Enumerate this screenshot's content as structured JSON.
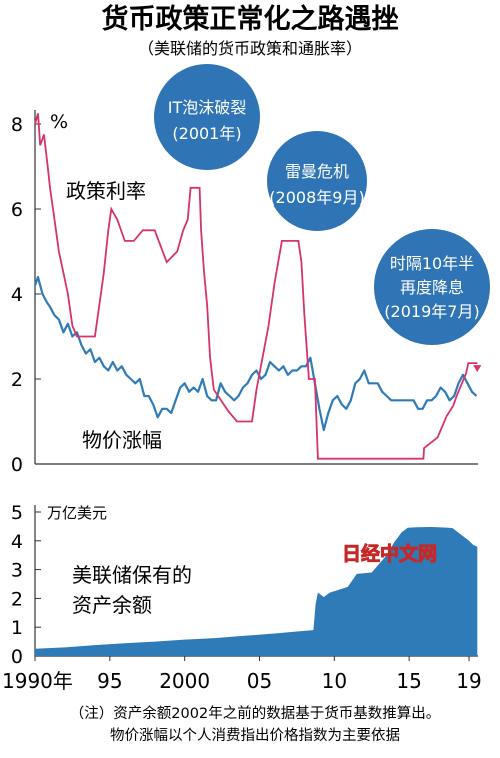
{
  "title": "货币政策正常化之路遇挫",
  "subtitle": "（美联储的货币政策和通胀率）",
  "colors": {
    "policy_rate": "#d6336c",
    "inflation": "#2f7bb8",
    "balance": "#2f7bb8",
    "bubble": "#2f74b5"
  },
  "annotations": [
    {
      "id": "it",
      "lines": [
        "IT泡沫破裂",
        "(2001年)"
      ]
    },
    {
      "id": "lehman",
      "lines": [
        "雷曼危机",
        "(2008年9月)"
      ]
    },
    {
      "id": "cut2019",
      "lines": [
        "时隔10年半",
        "再度降息",
        "(2019年7月)"
      ]
    }
  ],
  "note": {
    "line1": "（注）资产余额2002年之前的数据基于货币基数推算出。",
    "line2": "物价涨幅以个人消费指出价格指数为主要依据"
  },
  "watermark": "日经中文网",
  "chart_data": [
    {
      "type": "line",
      "yunit": "%",
      "ylim": [
        0,
        8
      ],
      "yticks": [
        0,
        2,
        4,
        6,
        8
      ],
      "xlim": [
        1990,
        2019.6
      ],
      "series": [
        {
          "name": "政策利率",
          "x": [
            1990.0,
            1990.2,
            1990.35,
            1990.6,
            1990.85,
            1991.0,
            1991.3,
            1991.6,
            1991.9,
            1992.2,
            1992.5,
            1992.8,
            1993.5,
            1994.0,
            1994.1,
            1994.3,
            1994.6,
            1994.9,
            1995.1,
            1995.5,
            1996.0,
            1996.6,
            1997.2,
            1998.0,
            1998.8,
            1999.5,
            1999.9,
            2000.2,
            2000.4,
            2001.0,
            2001.1,
            2001.3,
            2001.5,
            2001.7,
            2001.95,
            2002.9,
            2003.5,
            2004.5,
            2004.8,
            2005.2,
            2005.6,
            2006.0,
            2006.5,
            2007.6,
            2007.8,
            2008.0,
            2008.1,
            2008.3,
            2008.7,
            2008.9,
            2015.95,
            2016.0,
            2016.9,
            2017.2,
            2017.5,
            2017.95,
            2018.2,
            2018.5,
            2018.8,
            2018.95,
            2019.55
          ],
          "values": [
            8.0,
            8.25,
            7.5,
            7.75,
            7.0,
            6.5,
            5.75,
            5.0,
            4.5,
            4.0,
            3.25,
            3.0,
            3.0,
            3.0,
            3.25,
            3.75,
            4.5,
            5.5,
            6.0,
            5.75,
            5.25,
            5.25,
            5.5,
            5.5,
            4.75,
            5.0,
            5.5,
            5.75,
            6.5,
            6.5,
            5.5,
            4.5,
            3.75,
            2.5,
            1.75,
            1.25,
            1.0,
            1.0,
            1.75,
            2.5,
            3.25,
            4.25,
            5.25,
            5.25,
            4.75,
            3.5,
            3.0,
            2.0,
            2.0,
            0.125,
            0.125,
            0.375,
            0.625,
            0.875,
            1.125,
            1.375,
            1.625,
            1.875,
            2.125,
            2.375,
            2.375
          ]
        },
        {
          "name": "物价涨幅",
          "x": [
            1990.0,
            1990.2,
            1990.5,
            1990.8,
            1991.0,
            1991.3,
            1991.6,
            1991.9,
            1992.2,
            1992.5,
            1992.8,
            1993.1,
            1993.4,
            1993.7,
            1994.0,
            1994.3,
            1994.6,
            1994.9,
            1995.2,
            1995.5,
            1995.8,
            1996.1,
            1996.4,
            1996.7,
            1997.0,
            1997.3,
            1997.6,
            1997.9,
            1998.2,
            1998.5,
            1998.8,
            1999.1,
            1999.4,
            1999.7,
            2000.0,
            2000.3,
            2000.6,
            2000.9,
            2001.2,
            2001.5,
            2001.8,
            2002.1,
            2002.4,
            2002.7,
            2003.0,
            2003.3,
            2003.6,
            2003.9,
            2004.2,
            2004.5,
            2004.8,
            2005.1,
            2005.4,
            2005.7,
            2006.0,
            2006.3,
            2006.6,
            2006.9,
            2007.2,
            2007.5,
            2007.8,
            2008.1,
            2008.4,
            2008.7,
            2009.0,
            2009.3,
            2009.6,
            2009.9,
            2010.2,
            2010.5,
            2010.8,
            2011.1,
            2011.4,
            2011.7,
            2012.0,
            2012.3,
            2012.6,
            2012.9,
            2013.2,
            2013.5,
            2013.8,
            2014.1,
            2014.4,
            2014.7,
            2015.0,
            2015.3,
            2015.6,
            2015.9,
            2016.2,
            2016.5,
            2016.8,
            2017.1,
            2017.4,
            2017.7,
            2018.0,
            2018.3,
            2018.6,
            2018.9,
            2019.2,
            2019.5
          ],
          "values": [
            4.2,
            4.4,
            4.0,
            3.8,
            3.7,
            3.5,
            3.4,
            3.1,
            3.3,
            3.0,
            3.1,
            2.8,
            2.6,
            2.7,
            2.4,
            2.5,
            2.3,
            2.2,
            2.4,
            2.2,
            2.3,
            2.1,
            2.0,
            1.9,
            2.0,
            1.6,
            1.6,
            1.4,
            1.1,
            1.3,
            1.3,
            1.2,
            1.5,
            1.8,
            1.9,
            1.7,
            1.8,
            1.7,
            2.0,
            1.6,
            1.5,
            1.5,
            1.9,
            1.7,
            1.6,
            1.5,
            1.6,
            1.8,
            1.9,
            2.1,
            2.2,
            2.0,
            2.1,
            2.4,
            2.3,
            2.2,
            2.3,
            2.1,
            2.2,
            2.2,
            2.3,
            2.3,
            2.5,
            1.9,
            1.3,
            0.8,
            1.2,
            1.5,
            1.6,
            1.4,
            1.3,
            1.5,
            1.9,
            2.0,
            2.2,
            1.9,
            1.9,
            1.9,
            1.7,
            1.6,
            1.5,
            1.5,
            1.5,
            1.5,
            1.5,
            1.5,
            1.3,
            1.3,
            1.5,
            1.5,
            1.6,
            1.8,
            1.7,
            1.5,
            1.6,
            1.9,
            2.1,
            1.9,
            1.7,
            1.6
          ]
        }
      ]
    },
    {
      "type": "area",
      "name": "美联储保有的资产余额",
      "yunit": "万亿美元",
      "ylim": [
        0,
        5
      ],
      "yticks": [
        0,
        1,
        2,
        3,
        4,
        5
      ],
      "xlim": [
        1990,
        2019.6
      ],
      "xticks": [
        1990,
        1995,
        2000,
        2005,
        2010,
        2015,
        2019
      ],
      "xticklabels": [
        "1990年",
        "95",
        "2000",
        "05",
        "10",
        "15",
        "19"
      ],
      "x": [
        1990.0,
        1992.0,
        1994.0,
        1996.0,
        1998.0,
        2000.0,
        2002.0,
        2004.0,
        2006.0,
        2007.5,
        2008.6,
        2008.75,
        2008.9,
        2009.3,
        2009.7,
        2010.3,
        2010.9,
        2011.5,
        2012.5,
        2013.0,
        2013.5,
        2014.0,
        2014.5,
        2014.9,
        2015.5,
        2016.5,
        2017.5,
        2017.9,
        2018.5,
        2019.0,
        2019.3,
        2019.55
      ],
      "values": [
        0.25,
        0.3,
        0.38,
        0.44,
        0.5,
        0.57,
        0.62,
        0.7,
        0.78,
        0.85,
        0.9,
        1.8,
        2.2,
        2.05,
        2.2,
        2.3,
        2.4,
        2.85,
        2.9,
        3.2,
        3.5,
        3.95,
        4.3,
        4.45,
        4.47,
        4.48,
        4.46,
        4.44,
        4.2,
        4.0,
        3.85,
        3.8
      ]
    }
  ]
}
